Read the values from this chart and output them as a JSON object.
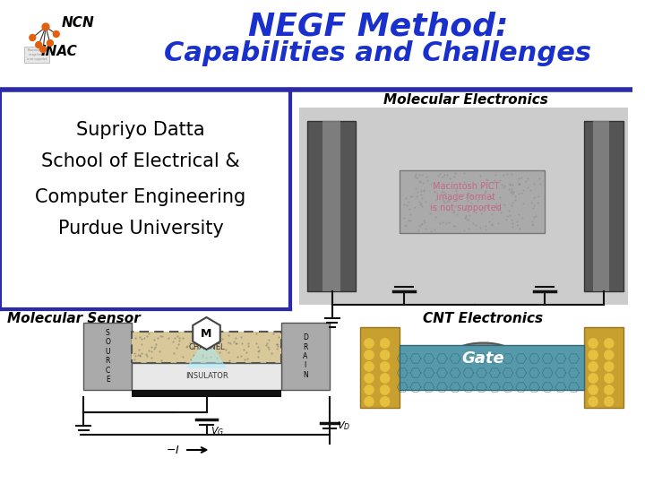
{
  "title_line1": "NEGF Method:",
  "title_line2": "Capabilities and Challenges",
  "title_color": "#1a30cc",
  "ncn_text": "NCN",
  "inac_text": "INAC",
  "left_text_line1": "Supriyo Datta",
  "left_text_line2": "School of Electrical &",
  "left_text_line3": "Computer Engineering",
  "left_text_line4": "Purdue University",
  "mol_electronics_label": "Molecular Electronics",
  "mol_sensor_label": "Molecular Sensor",
  "cnt_electronics_label": "CNT Electronics",
  "gate_label": "Gate",
  "gate_bg_color": "#888888",
  "background_color": "#ffffff",
  "divider_color": "#2a2aaa",
  "left_box_border": "#2a2aaa",
  "pict_text_color": "#cc6688",
  "pict_text": "Macintosh PICT\nimage format\nis not supported"
}
